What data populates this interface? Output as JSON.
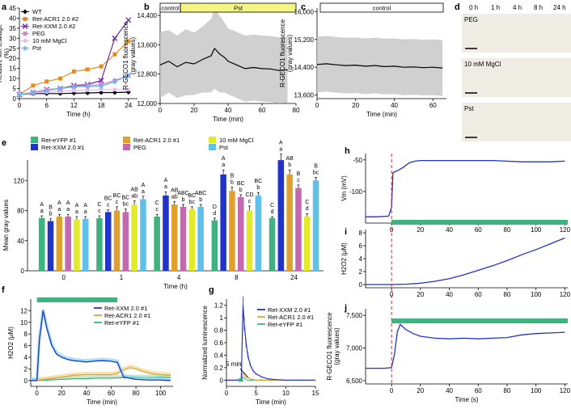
{
  "panel_letters": [
    "a",
    "b",
    "c",
    "d",
    "e",
    "f",
    "g",
    "h",
    "i",
    "j"
  ],
  "colors": {
    "wt": "#000000",
    "acr": "#e8891c",
    "xxm": "#6a2c9a",
    "peg": "#e07fd7",
    "mgcl": "#e8b7f2",
    "pst": "#62b6e8",
    "green": "#3fb27f",
    "blue": "#2233c8",
    "orange": "#e0a030",
    "pink": "#c468b0",
    "yellow": "#e3ea2a",
    "sky": "#5fc0e8",
    "band": "#c8c8c8",
    "bar": "#f3f680",
    "red": "#d83030"
  },
  "panel_d": {
    "times": [
      "0 h",
      "1 h",
      "4 h",
      "8 h",
      "24 h"
    ],
    "rows": [
      {
        "label": "PEG"
      },
      {
        "label": "10 mM MgCl"
      },
      {
        "label": "Pst"
      }
    ]
  },
  "panel_f": {
    "arrow_label": ""
  },
  "panel_g": {
    "arrow_label": "5 min"
  },
  "chart_data": [
    {
      "id": "a",
      "type": "line",
      "xlabel": "Time (h)",
      "ylabel": "Relative ion leakage (%)",
      "xlim": [
        0,
        26
      ],
      "ylim": [
        0,
        45
      ],
      "xticks": [
        0,
        6,
        12,
        18,
        24
      ],
      "yticks": [
        0,
        5,
        10,
        15,
        20,
        25,
        30,
        35,
        40,
        45
      ],
      "series": [
        {
          "name": "WT",
          "color": "#000000",
          "marker": "diamond",
          "x": [
            0,
            3,
            6,
            9,
            12,
            15,
            18,
            21,
            24
          ],
          "y": [
            2,
            2.5,
            2.5,
            2.5,
            2.7,
            2.8,
            3,
            3,
            3.2
          ]
        },
        {
          "name": "Ret-ACR1 2.0 #2",
          "color": "#e8891c",
          "marker": "square",
          "x": [
            0,
            3,
            6,
            9,
            12,
            15,
            18,
            21,
            24
          ],
          "y": [
            2,
            6.5,
            8.5,
            10,
            13.5,
            14.5,
            16,
            22,
            28.5
          ]
        },
        {
          "name": "Ret-XXM 2.0 #2",
          "color": "#6a2c9a",
          "marker": "x",
          "x": [
            0,
            3,
            6,
            9,
            12,
            15,
            18,
            21,
            24
          ],
          "y": [
            2,
            3,
            4.5,
            5,
            6.5,
            7,
            9,
            30,
            39
          ]
        },
        {
          "name": "PEG",
          "color": "#e07fd7",
          "marker": "square",
          "x": [
            0,
            3,
            6,
            9,
            12,
            15,
            18,
            21,
            24
          ],
          "y": [
            2,
            3,
            4.5,
            5,
            6,
            6.5,
            7,
            9,
            11.5
          ]
        },
        {
          "name": "10 mM MgCl",
          "color": "#e8b7f2",
          "marker": "circle",
          "x": [
            0,
            3,
            6,
            9,
            12,
            15,
            18,
            21,
            24
          ],
          "y": [
            2,
            2.7,
            3.2,
            3.5,
            4,
            4.2,
            4.5,
            4.5,
            4.5
          ]
        },
        {
          "name": "Pst",
          "color": "#62b6e8",
          "marker": "star",
          "x": [
            0,
            3,
            6,
            9,
            12,
            15,
            18,
            21,
            24
          ],
          "y": [
            2,
            3,
            4,
            5,
            6,
            6,
            6.2,
            8.5,
            11.5
          ]
        }
      ]
    },
    {
      "id": "b",
      "type": "line",
      "xlabel": "Time (min)",
      "ylabel": "R-GECO1 fluorescence (gray values)",
      "xlim": [
        0,
        80
      ],
      "ylim": [
        12000,
        14600
      ],
      "xticks": [
        0,
        20,
        40,
        60,
        80
      ],
      "yticks": [
        12000,
        12800,
        13600,
        14400
      ],
      "bar_labels": [
        "control",
        "Pst"
      ],
      "bar_split_x": 12,
      "series": [
        {
          "name": "mean",
          "x": [
            0,
            5,
            10,
            15,
            20,
            25,
            30,
            32,
            35,
            38,
            40,
            45,
            50,
            55,
            60,
            65,
            70,
            75
          ],
          "y": [
            13050,
            13150,
            13000,
            13120,
            13080,
            13200,
            13300,
            13500,
            13350,
            13250,
            13150,
            13050,
            12950,
            12980,
            12950,
            12940,
            12900,
            12920
          ],
          "sd": [
            900,
            850,
            850,
            900,
            850,
            900,
            1000,
            1100,
            1050,
            950,
            900,
            900,
            900,
            900,
            900,
            900,
            900,
            900
          ]
        }
      ]
    },
    {
      "id": "c",
      "type": "line",
      "xlabel": "Time (min)",
      "ylabel": "R-GECO1 fluorescence (gray values)",
      "xlim": [
        0,
        67
      ],
      "ylim": [
        13500,
        16100
      ],
      "xticks": [
        0,
        20,
        40,
        60
      ],
      "yticks": [
        13600,
        14400,
        15200,
        16000
      ],
      "bar_labels": [
        "control"
      ],
      "series": [
        {
          "name": "mean",
          "x": [
            0,
            5,
            10,
            15,
            20,
            25,
            30,
            35,
            40,
            45,
            50,
            55,
            60,
            65
          ],
          "y": [
            14480,
            14500,
            14470,
            14450,
            14460,
            14430,
            14450,
            14420,
            14430,
            14400,
            14410,
            14390,
            14400,
            14380
          ],
          "sd": [
            800,
            800,
            800,
            800,
            800,
            800,
            800,
            800,
            800,
            800,
            800,
            800,
            800,
            800
          ]
        }
      ]
    },
    {
      "id": "e",
      "type": "bar",
      "xlabel": "Time (h)",
      "ylabel": "Mean gray values",
      "ylim": [
        0,
        160
      ],
      "yticks": [
        0,
        40,
        80,
        120
      ],
      "categories": [
        "0",
        "1",
        "4",
        "8",
        "24"
      ],
      "series": [
        {
          "name": "Ret-eYFP #1",
          "color": "#3fb27f",
          "values": [
            70,
            70,
            72,
            67,
            70
          ],
          "errors": [
            3,
            3,
            3,
            3,
            2
          ],
          "letters_upper": [
            "A",
            "C",
            "C",
            "D",
            "C"
          ],
          "letters_lower": [
            "a",
            "c",
            "c",
            "d",
            "d"
          ]
        },
        {
          "name": "Ret-XXM 2.0 #1",
          "color": "#2233c8",
          "values": [
            66,
            78,
            100,
            128,
            147
          ],
          "errors": [
            3,
            3,
            5,
            6,
            8
          ],
          "letters_upper": [
            "B",
            "BC",
            "A",
            "A",
            "A"
          ],
          "letters_lower": [
            "b",
            "c",
            "a",
            "a",
            "a"
          ]
        },
        {
          "name": "Ret-ACR1 2.0 #1",
          "color": "#e0a030",
          "values": [
            72,
            80,
            88,
            106,
            128
          ],
          "errors": [
            3,
            5,
            4,
            5,
            6
          ],
          "letters_upper": [
            "A",
            "BC",
            "AB",
            "B",
            "AB"
          ],
          "letters_lower": [
            "a",
            "c",
            "ab",
            "b",
            "b"
          ]
        },
        {
          "name": "PEG",
          "color": "#c468b0",
          "values": [
            72,
            78,
            85,
            98,
            110
          ],
          "errors": [
            3,
            4,
            3,
            3,
            4
          ],
          "letters_upper": [
            "A",
            "BC",
            "ABC",
            "BC",
            "B"
          ],
          "letters_lower": [
            "a",
            "bc",
            "b",
            "b",
            "c"
          ]
        },
        {
          "name": "10 mM MgCl",
          "color": "#e3ea2a",
          "values": [
            68,
            88,
            82,
            80,
            72
          ],
          "errors": [
            4,
            5,
            3,
            6,
            4
          ],
          "letters_upper": [
            "A",
            "AB",
            "BC",
            "CD",
            "C"
          ],
          "letters_lower": [
            "a",
            "ab",
            "bc",
            "c",
            "d"
          ]
        },
        {
          "name": "Pst",
          "color": "#5fc0e8",
          "values": [
            69,
            95,
            85,
            100,
            120
          ],
          "errors": [
            3,
            4,
            3,
            4,
            4
          ],
          "letters_upper": [
            "A",
            "A",
            "ABC",
            "BC",
            "B"
          ],
          "letters_lower": [
            "a",
            "a",
            "b",
            "b",
            "bc"
          ]
        }
      ]
    },
    {
      "id": "f",
      "type": "line",
      "xlabel": "Time (min)",
      "ylabel": "H2O2 (µM)",
      "xlim": [
        -5,
        110
      ],
      "ylim": [
        -1,
        14
      ],
      "xticks": [
        0,
        20,
        40,
        60,
        80,
        100
      ],
      "yticks": [
        0,
        2,
        4,
        6,
        8,
        10,
        12
      ],
      "bar_x": [
        0,
        65
      ],
      "series": [
        {
          "name": "Ret-XXM 2.0 #1",
          "color": "#2233c8",
          "x": [
            -5,
            0,
            2,
            5,
            8,
            12,
            16,
            20,
            25,
            30,
            35,
            40,
            45,
            50,
            55,
            60,
            65,
            70,
            80,
            90,
            100,
            108
          ],
          "y": [
            0,
            0,
            7,
            12,
            9,
            6,
            4.5,
            4,
            3.6,
            3.4,
            3.3,
            3.2,
            3.3,
            3.4,
            3.4,
            3.3,
            3.1,
            0.6,
            0.2,
            0.1,
            0.1,
            0
          ]
        },
        {
          "name": "Ret-ACR1 2.0 #1",
          "color": "#e0a030",
          "x": [
            -5,
            0,
            10,
            20,
            30,
            40,
            50,
            60,
            65,
            70,
            75,
            80,
            85,
            90,
            95,
            100,
            108
          ],
          "y": [
            0,
            0,
            0.3,
            0.6,
            0.9,
            1.0,
            1.0,
            1.0,
            1.2,
            1.8,
            2.2,
            2.0,
            1.6,
            1.3,
            1.1,
            1.0,
            0.9
          ]
        },
        {
          "name": "Ret-eYFP #1",
          "color": "#3fb27f",
          "x": [
            -5,
            0,
            10,
            20,
            30,
            40,
            50,
            60,
            70,
            80,
            90,
            100,
            108
          ],
          "y": [
            0,
            0,
            0.1,
            0.2,
            0.3,
            0.3,
            0.4,
            0.4,
            0.5,
            0.5,
            0.5,
            0.6,
            0.5
          ]
        }
      ]
    },
    {
      "id": "g",
      "type": "line",
      "xlabel": "Time (min)",
      "ylabel": "Normalized luminescence",
      "xlim": [
        0,
        15
      ],
      "ylim": [
        -0.1,
        1.3
      ],
      "xticks": [
        0,
        5,
        10,
        15
      ],
      "yticks": [
        0,
        0.2,
        0.4,
        0.6,
        0.8,
        1.0,
        1.2
      ],
      "series": [
        {
          "name": "Ret-XXM 2.0 #1",
          "color": "#2233c8",
          "x": [
            0,
            2,
            2.5,
            2.8,
            3.0,
            3.3,
            3.6,
            4.0,
            4.5,
            5,
            6,
            7,
            8,
            10,
            15
          ],
          "y": [
            0,
            0,
            0,
            1.2,
            0.9,
            0.6,
            0.4,
            0.25,
            0.15,
            0.1,
            0.05,
            0.02,
            0.01,
            0,
            0
          ]
        },
        {
          "name": "Ret-ACR1 2.0 #1",
          "color": "#e0a030",
          "x": [
            0,
            2,
            2.5,
            2.8,
            3.2,
            4,
            5,
            15
          ],
          "y": [
            0,
            0,
            0,
            0.12,
            0.06,
            0.02,
            0,
            0
          ]
        },
        {
          "name": "Ret-eYFP #1",
          "color": "#3fb27f",
          "x": [
            0,
            2,
            2.8,
            3.5,
            15
          ],
          "y": [
            0,
            0,
            0.05,
            0,
            0
          ]
        }
      ]
    },
    {
      "id": "h",
      "type": "line",
      "xlabel": "",
      "ylabel": "Vm (mV)",
      "xlim": [
        -18,
        122
      ],
      "ylim": [
        -150,
        -40
      ],
      "xticks": [
        0,
        20,
        40,
        60,
        80,
        100,
        120
      ],
      "yticks": [
        -50,
        -100
      ],
      "series": [
        {
          "name": "Vm",
          "color": "#2233c8",
          "x": [
            -18,
            -10,
            -2,
            0,
            1,
            3,
            5,
            8,
            12,
            16,
            20,
            30,
            40,
            60,
            70,
            80,
            90,
            100,
            110,
            120
          ],
          "y": [
            -140,
            -140,
            -139,
            -125,
            -70,
            -68,
            -66,
            -62,
            -55,
            -52,
            -51,
            -51,
            -51,
            -51,
            -51,
            -52,
            -53,
            -53,
            -53,
            -52
          ]
        }
      ]
    },
    {
      "id": "i",
      "type": "line",
      "xlabel": "",
      "ylabel": "H2O2 (µM)",
      "xlim": [
        -18,
        122
      ],
      "ylim": [
        -0.5,
        8.5
      ],
      "xticks": [
        0,
        20,
        40,
        60,
        80,
        100,
        120
      ],
      "yticks": [
        0,
        2,
        4,
        6,
        8
      ],
      "series": [
        {
          "name": "H2O2",
          "color": "#2233c8",
          "x": [
            -18,
            0,
            10,
            20,
            30,
            40,
            50,
            60,
            70,
            80,
            90,
            100,
            110,
            120
          ],
          "y": [
            0,
            0,
            0.05,
            0.2,
            0.5,
            0.9,
            1.5,
            2.2,
            2.9,
            3.7,
            4.6,
            5.4,
            6.3,
            7.2
          ]
        }
      ]
    },
    {
      "id": "j",
      "type": "line",
      "xlabel": "Time (s)",
      "ylabel": "R-GECO1 fluorescence (gray values)",
      "xlim": [
        -18,
        122
      ],
      "ylim": [
        6450,
        7600
      ],
      "xticks": [
        0,
        20,
        40,
        60,
        80,
        100,
        120
      ],
      "yticks": [
        6500,
        7000,
        7500
      ],
      "series": [
        {
          "name": "R-GECO1",
          "color": "#2233c8",
          "x": [
            -18,
            -5,
            0,
            2,
            4,
            6,
            10,
            15,
            20,
            30,
            40,
            50,
            60,
            70,
            80,
            85,
            90,
            100,
            110,
            120
          ],
          "y": [
            6690,
            6690,
            6700,
            6900,
            7250,
            7360,
            7280,
            7220,
            7180,
            7150,
            7140,
            7150,
            7140,
            7150,
            7160,
            7180,
            7200,
            7220,
            7230,
            7240
          ]
        }
      ]
    }
  ]
}
